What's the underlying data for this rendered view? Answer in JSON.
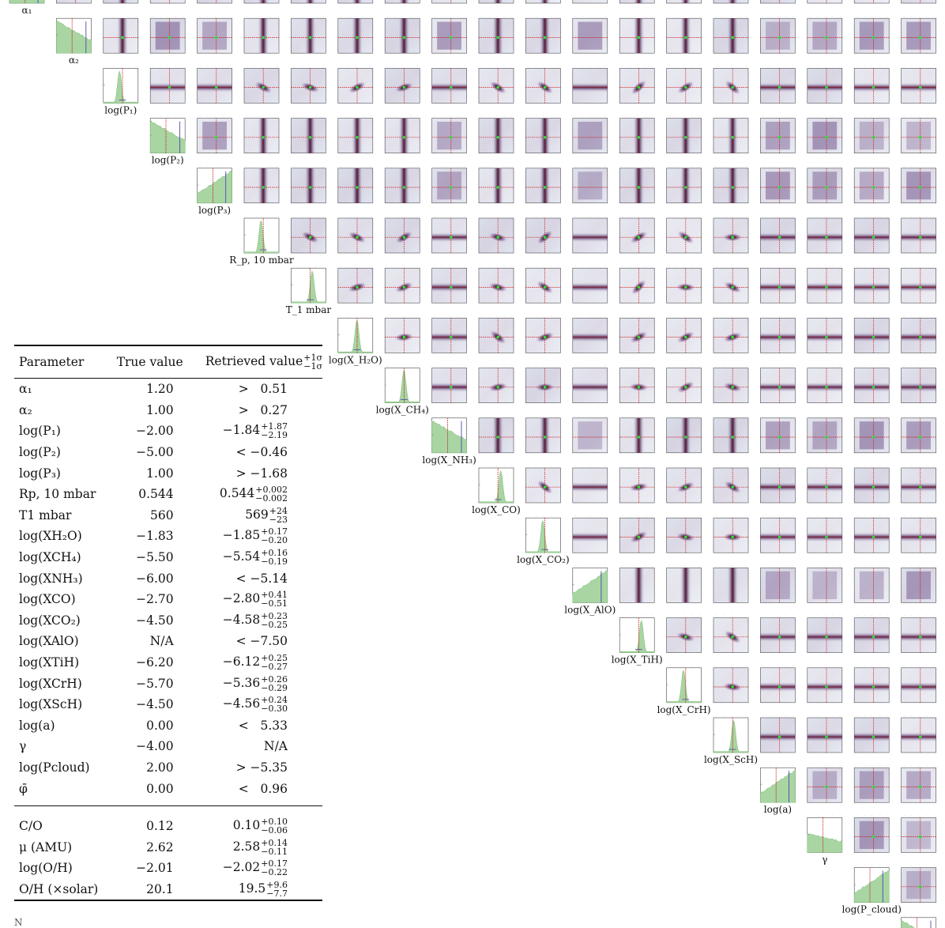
{
  "chart_data": {
    "type": "corner",
    "parameters": [
      {
        "label": "α₁",
        "true": 1.2
      },
      {
        "label": "α₂",
        "true": 1.0
      },
      {
        "label": "log(P₁)",
        "true": -2.0
      },
      {
        "label": "log(P₂)",
        "true": -5.0
      },
      {
        "label": "log(P₃)",
        "true": 1.0
      },
      {
        "label": "R_p, 10 mbar",
        "true": 0.544
      },
      {
        "label": "T_1 mbar",
        "true": 560
      },
      {
        "label": "log(X_H₂O)",
        "true": -1.83
      },
      {
        "label": "log(X_CH₄)",
        "true": -5.5
      },
      {
        "label": "log(X_NH₃)",
        "true": -6.0
      },
      {
        "label": "log(X_CO)",
        "true": -2.7
      },
      {
        "label": "log(X_CO₂)",
        "true": -4.5
      },
      {
        "label": "log(X_AlO)",
        "true": null
      },
      {
        "label": "log(X_TiH)",
        "true": -6.2
      },
      {
        "label": "log(X_CrH)",
        "true": -5.7
      },
      {
        "label": "log(X_ScH)",
        "true": -4.5
      },
      {
        "label": "log(a)",
        "true": 0.0
      },
      {
        "label": "γ",
        "true": -4.0
      },
      {
        "label": "log(P_cloud)",
        "true": 2.0
      },
      {
        "label": "φ̄",
        "true": 0.0
      }
    ],
    "marginal_types": [
      "bound",
      "bound",
      "peak",
      "bound",
      "bound",
      "peak",
      "peak",
      "peak",
      "peak",
      "bound",
      "peak",
      "peak",
      "bound",
      "peak",
      "peak",
      "peak",
      "bound",
      "flat",
      "bound",
      "bound"
    ],
    "colors": {
      "marginal_fill": "#a8d5a2",
      "truth_line": "#cc1111",
      "bound_line": "#4a4ab0",
      "truth_point": "#33dd33",
      "density_dark": "#1a1030",
      "density_mid": "#6a2a70",
      "density_haze": "#9fb0cc"
    }
  },
  "table": {
    "headers": {
      "name": "Parameter",
      "true": "True value",
      "retrieved": "Retrieved value",
      "retrieved_sup": "+1σ",
      "retrieved_sub": "−1σ"
    },
    "rows": [
      {
        "name": "α₁",
        "true": "1.20",
        "retrieved": ">   0.51"
      },
      {
        "name": "α₂",
        "true": "1.00",
        "retrieved": ">   0.27"
      },
      {
        "name": "log(P₁)",
        "true": "−2.00",
        "retrieved": "−1.84",
        "plus": "+1.87",
        "minus": "−2.19"
      },
      {
        "name": "log(P₂)",
        "true": "−5.00",
        "retrieved": "< −0.46"
      },
      {
        "name": "log(P₃)",
        "true": "1.00",
        "retrieved": "> −1.68"
      },
      {
        "name": "Rp, 10 mbar",
        "true": "0.544",
        "retrieved": "0.544",
        "plus": "+0.002",
        "minus": "−0.002"
      },
      {
        "name": "T1 mbar",
        "true": "560",
        "retrieved": "569",
        "plus": "+24",
        "minus": "−23"
      },
      {
        "name": "log(XH₂O)",
        "true": "−1.83",
        "retrieved": "−1.85",
        "plus": "+0.17",
        "minus": "−0.20"
      },
      {
        "name": "log(XCH₄)",
        "true": "−5.50",
        "retrieved": "−5.54",
        "plus": "+0.16",
        "minus": "−0.19"
      },
      {
        "name": "log(XNH₃)",
        "true": "−6.00",
        "retrieved": "< −5.14"
      },
      {
        "name": "log(XCO)",
        "true": "−2.70",
        "retrieved": "−2.80",
        "plus": "+0.41",
        "minus": "−0.51"
      },
      {
        "name": "log(XCO₂)",
        "true": "−4.50",
        "retrieved": "−4.58",
        "plus": "+0.23",
        "minus": "−0.25"
      },
      {
        "name": "log(XAlO)",
        "true": "N/A",
        "retrieved": "< −7.50"
      },
      {
        "name": "log(XTiH)",
        "true": "−6.20",
        "retrieved": "−6.12",
        "plus": "+0.25",
        "minus": "−0.27"
      },
      {
        "name": "log(XCrH)",
        "true": "−5.70",
        "retrieved": "−5.36",
        "plus": "+0.26",
        "minus": "−0.29"
      },
      {
        "name": "log(XScH)",
        "true": "−4.50",
        "retrieved": "−4.56",
        "plus": "+0.24",
        "minus": "−0.30"
      },
      {
        "name": "log(a)",
        "true": "0.00",
        "retrieved": "<   5.33"
      },
      {
        "name": "γ",
        "true": "−4.00",
        "retrieved": "N/A"
      },
      {
        "name": "log(Pcloud)",
        "true": "2.00",
        "retrieved": "> −5.35"
      },
      {
        "name": "φ̄",
        "true": "0.00",
        "retrieved": "<   0.96"
      }
    ],
    "derived_rows": [
      {
        "name": "C/O",
        "true": "0.12",
        "retrieved": "0.10",
        "plus": "+0.10",
        "minus": "−0.06"
      },
      {
        "name": "μ (AMU)",
        "true": "2.62",
        "retrieved": "2.58",
        "plus": "+0.14",
        "minus": "−0.11"
      },
      {
        "name": "log(O/H)",
        "true": "−2.01",
        "retrieved": "−2.02",
        "plus": "+0.17",
        "minus": "−0.22"
      },
      {
        "name": "O/H (×solar)",
        "true": "20.1",
        "retrieved": "19.5",
        "plus": "+9.6",
        "minus": "−7.7"
      }
    ]
  },
  "footnote": "N"
}
